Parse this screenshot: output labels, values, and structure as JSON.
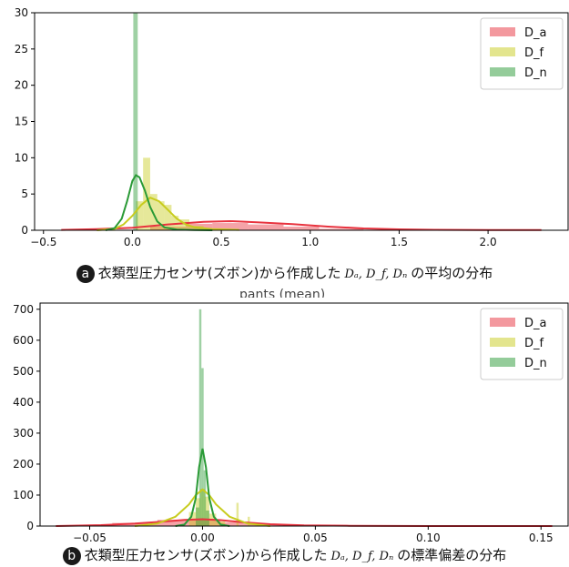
{
  "captions": {
    "a": {
      "badge": "a",
      "text_before": "衣類型圧力センサ(ズボン)から作成した",
      "math": "Dₐ, D_f, Dₙ",
      "text_after": "の平均の分布"
    },
    "b": {
      "badge": "b",
      "text_before": "衣類型圧力センサ(ズボン)から作成した",
      "math": "Dₐ, D_f, Dₙ",
      "text_after": "の標準偏差の分布"
    }
  },
  "cut_title_b": "pants (mean)",
  "colors": {
    "D_a": "#e8323e",
    "D_f": "#c8cc1e",
    "D_n": "#2a9a36"
  },
  "chart_data": [
    {
      "type": "bar",
      "xlim": [
        -0.55,
        2.45
      ],
      "ylim": [
        0,
        30
      ],
      "xticks": [
        -0.5,
        0.0,
        0.5,
        1.0,
        1.5,
        2.0
      ],
      "xtick_labels": [
        "−0.5",
        "0.0",
        "0.5",
        "1.0",
        "1.5",
        "2.0"
      ],
      "yticks": [
        0,
        5,
        10,
        15,
        20,
        25,
        30
      ],
      "ytick_labels": [
        "0",
        "5",
        "10",
        "15",
        "20",
        "25",
        "30"
      ],
      "legend_position": "top-right",
      "series": [
        {
          "name": "D_a",
          "color": "#e8323e",
          "hist": [
            [
              -0.4,
              0.1,
              0.05
            ],
            [
              0.1,
              0.3,
              0.5
            ],
            [
              0.3,
              0.45,
              0.9
            ],
            [
              0.45,
              0.65,
              1.0
            ],
            [
              0.65,
              0.85,
              0.8
            ],
            [
              0.85,
              1.05,
              0.5
            ],
            [
              1.05,
              1.3,
              0.2
            ],
            [
              1.3,
              2.25,
              0.05
            ]
          ],
          "kde_x": [
            -0.4,
            -0.2,
            0,
            0.2,
            0.4,
            0.55,
            0.7,
            0.9,
            1.1,
            1.3,
            1.5,
            1.7,
            2.0,
            2.3
          ],
          "kde_y": [
            0.05,
            0.15,
            0.35,
            0.8,
            1.15,
            1.25,
            1.1,
            0.85,
            0.5,
            0.25,
            0.12,
            0.06,
            0.03,
            0.02
          ]
        },
        {
          "name": "D_f",
          "color": "#c8cc1e",
          "hist": [
            [
              0.02,
              0.06,
              4.0
            ],
            [
              0.06,
              0.1,
              10.0
            ],
            [
              0.1,
              0.14,
              5.0
            ],
            [
              0.14,
              0.18,
              4.0
            ],
            [
              0.18,
              0.22,
              3.5
            ],
            [
              0.22,
              0.26,
              2.0
            ],
            [
              0.26,
              0.32,
              1.5
            ],
            [
              0.32,
              0.4,
              0.6
            ]
          ],
          "kde_x": [
            -0.2,
            -0.1,
            -0.05,
            0,
            0.05,
            0.1,
            0.15,
            0.2,
            0.25,
            0.3,
            0.35,
            0.45,
            0.6
          ],
          "kde_y": [
            0,
            0.2,
            0.8,
            2.0,
            3.5,
            4.5,
            4.0,
            2.8,
            1.6,
            0.8,
            0.4,
            0.15,
            0.05
          ]
        },
        {
          "name": "D_n",
          "color": "#2a9a36",
          "hist": [
            [
              0.005,
              0.03,
              30.0
            ]
          ],
          "kde_x": [
            -0.15,
            -0.1,
            -0.06,
            -0.03,
            0,
            0.02,
            0.04,
            0.07,
            0.1,
            0.14,
            0.18,
            0.25,
            0.35,
            0.45
          ],
          "kde_y": [
            0,
            0.3,
            1.6,
            4.0,
            6.8,
            7.6,
            7.3,
            5.5,
            3.2,
            1.2,
            0.4,
            0.1,
            0.02,
            0
          ]
        }
      ]
    },
    {
      "type": "bar",
      "xlim": [
        -0.072,
        0.162
      ],
      "ylim": [
        0,
        720
      ],
      "xticks": [
        -0.05,
        0.0,
        0.05,
        0.1,
        0.15
      ],
      "xtick_labels": [
        "−0.05",
        "0.00",
        "0.05",
        "0.10",
        "0.15"
      ],
      "yticks": [
        0,
        100,
        200,
        300,
        400,
        500,
        600,
        700
      ],
      "ytick_labels": [
        "0",
        "100",
        "200",
        "300",
        "400",
        "500",
        "600",
        "700"
      ],
      "legend_position": "top-right",
      "series": [
        {
          "name": "D_a",
          "color": "#e8323e",
          "hist": [
            [
              -0.04,
              -0.02,
              10
            ],
            [
              -0.02,
              -0.008,
              20
            ],
            [
              -0.008,
              0.0,
              22
            ],
            [
              0.0,
              0.008,
              20
            ],
            [
              0.008,
              0.02,
              12
            ],
            [
              0.02,
              0.035,
              5
            ],
            [
              0.035,
              0.155,
              1
            ]
          ],
          "kde_x": [
            -0.065,
            -0.045,
            -0.03,
            -0.018,
            -0.008,
            0,
            0.008,
            0.018,
            0.03,
            0.045,
            0.065,
            0.1,
            0.155
          ],
          "kde_y": [
            0,
            3,
            8,
            14,
            20,
            22,
            19,
            12,
            6,
            2,
            1,
            0,
            0
          ]
        },
        {
          "name": "D_f",
          "color": "#c8cc1e",
          "hist": [
            [
              -0.006,
              -0.003,
              45
            ],
            [
              -0.003,
              -0.001,
              90
            ],
            [
              -0.001,
              0.001,
              120
            ],
            [
              0.001,
              0.003,
              95
            ],
            [
              0.003,
              0.006,
              40
            ],
            [
              0.006,
              0.01,
              15
            ],
            [
              0.015,
              0.016,
              75
            ],
            [
              0.02,
              0.021,
              30
            ]
          ],
          "kde_x": [
            -0.03,
            -0.02,
            -0.012,
            -0.006,
            -0.003,
            0,
            0.003,
            0.006,
            0.012,
            0.02,
            0.03
          ],
          "kde_y": [
            0,
            8,
            30,
            70,
            100,
            118,
            100,
            70,
            30,
            8,
            0
          ]
        },
        {
          "name": "D_n",
          "color": "#2a9a36",
          "hist": [
            [
              -0.0015,
              -0.0005,
              700
            ],
            [
              -0.0005,
              0.0005,
              510
            ],
            [
              0.0005,
              0.0015,
              180
            ],
            [
              -0.003,
              -0.0015,
              60
            ],
            [
              0.0015,
              0.003,
              50
            ]
          ],
          "kde_x": [
            -0.012,
            -0.008,
            -0.005,
            -0.003,
            -0.0015,
            0,
            0.0015,
            0.003,
            0.005,
            0.008,
            0.012
          ],
          "kde_y": [
            0,
            5,
            30,
            90,
            190,
            250,
            190,
            90,
            30,
            5,
            0
          ]
        }
      ]
    }
  ]
}
